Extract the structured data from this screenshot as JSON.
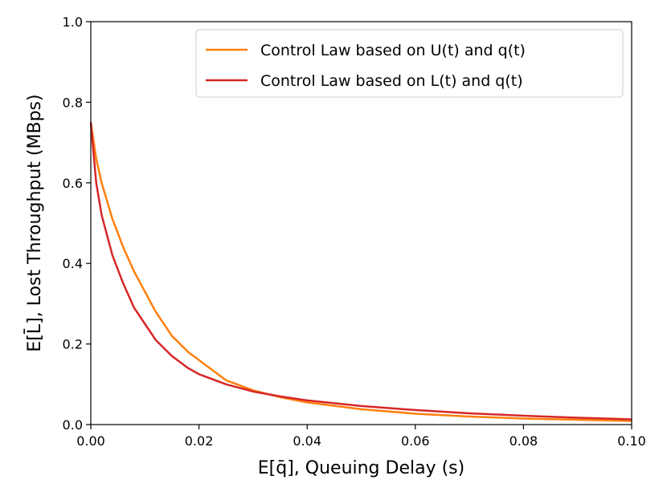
{
  "chart_data": {
    "type": "line",
    "xlabel": "E[q̄], Queuing Delay (s)",
    "ylabel": "E[L̄], Lost Throughput (MBps)",
    "xlim": [
      0.0,
      0.1
    ],
    "ylim": [
      0.0,
      1.0
    ],
    "xticks": [
      "0.00",
      "0.02",
      "0.04",
      "0.06",
      "0.08",
      "0.10"
    ],
    "yticks": [
      "0.0",
      "0.2",
      "0.4",
      "0.6",
      "0.8",
      "1.0"
    ],
    "grid": false,
    "legend_position": "top-right",
    "series": [
      {
        "name": "Control Law based on U(t) and q(t)",
        "color": "#ff7f0e",
        "points": [
          [
            0.0,
            0.75
          ],
          [
            0.001,
            0.66
          ],
          [
            0.002,
            0.6
          ],
          [
            0.004,
            0.51
          ],
          [
            0.006,
            0.44
          ],
          [
            0.008,
            0.38
          ],
          [
            0.01,
            0.33
          ],
          [
            0.012,
            0.28
          ],
          [
            0.015,
            0.22
          ],
          [
            0.018,
            0.18
          ],
          [
            0.02,
            0.16
          ],
          [
            0.025,
            0.11
          ],
          [
            0.03,
            0.085
          ],
          [
            0.035,
            0.068
          ],
          [
            0.04,
            0.055
          ],
          [
            0.05,
            0.038
          ],
          [
            0.06,
            0.027
          ],
          [
            0.07,
            0.02
          ],
          [
            0.08,
            0.015
          ],
          [
            0.09,
            0.012
          ],
          [
            0.1,
            0.009
          ]
        ]
      },
      {
        "name": "Control Law based on L(t) and q(t)",
        "color": "#d62728",
        "points": [
          [
            0.0,
            0.75
          ],
          [
            0.001,
            0.6
          ],
          [
            0.002,
            0.52
          ],
          [
            0.004,
            0.42
          ],
          [
            0.006,
            0.35
          ],
          [
            0.008,
            0.29
          ],
          [
            0.01,
            0.25
          ],
          [
            0.012,
            0.21
          ],
          [
            0.015,
            0.17
          ],
          [
            0.018,
            0.14
          ],
          [
            0.02,
            0.125
          ],
          [
            0.025,
            0.1
          ],
          [
            0.03,
            0.082
          ],
          [
            0.035,
            0.07
          ],
          [
            0.04,
            0.06
          ],
          [
            0.05,
            0.046
          ],
          [
            0.06,
            0.036
          ],
          [
            0.07,
            0.028
          ],
          [
            0.08,
            0.022
          ],
          [
            0.09,
            0.017
          ],
          [
            0.1,
            0.013
          ]
        ]
      }
    ]
  }
}
